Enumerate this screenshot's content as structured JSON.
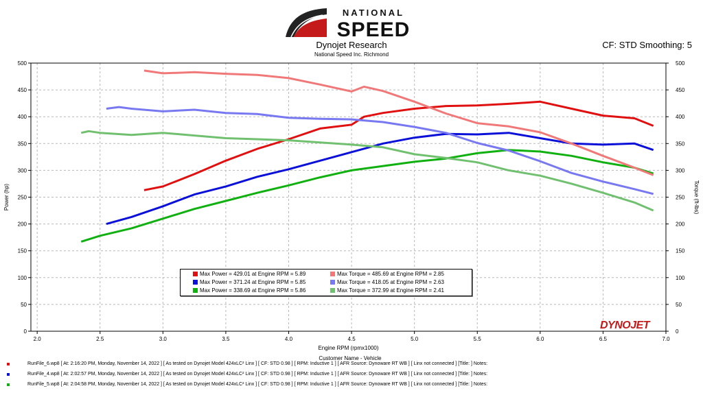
{
  "header": {
    "logo_line1": "NATIONAL",
    "logo_line2": "SPEED",
    "title": "Dynojet Research",
    "subtitle": "National Speed Inc. Richmond",
    "cf_info": "CF: STD Smoothing: 5"
  },
  "colors": {
    "red": "#e01010",
    "blue": "#0a10d8",
    "green": "#10b010",
    "light_red": "#f07878",
    "light_blue": "#7878f0",
    "light_green": "#70c070"
  },
  "chart_data": {
    "type": "line",
    "xlabel": "Engine RPM (rpmx1000)",
    "ylabel": "Power (hp)",
    "y2label": "Torque (ft-lbs)",
    "xlim": [
      1.95,
      7.0
    ],
    "ylim": [
      0,
      500
    ],
    "y2lim": [
      0,
      500
    ],
    "x_ticks": [
      "2.0",
      "2.5",
      "3.0",
      "3.5",
      "4.0",
      "4.5",
      "5.0",
      "5.5",
      "6.0",
      "6.5",
      "7.0"
    ],
    "y_ticks": [
      "0",
      "50",
      "100",
      "150",
      "200",
      "250",
      "300",
      "350",
      "400",
      "450",
      "500"
    ],
    "grid": true,
    "series": [
      {
        "name": "Max Power",
        "color": "#e01010",
        "x": [
          2.85,
          3.0,
          3.25,
          3.5,
          3.75,
          4.0,
          4.25,
          4.5,
          4.6,
          4.75,
          5.0,
          5.25,
          5.5,
          5.75,
          6.0,
          6.25,
          6.5,
          6.75,
          6.9
        ],
        "y": [
          263,
          270,
          293,
          318,
          340,
          358,
          378,
          385,
          400,
          407,
          415,
          420,
          421,
          424,
          428,
          415,
          402,
          397,
          383
        ]
      },
      {
        "name": "Max Power",
        "color": "#0a10d8",
        "x": [
          2.55,
          2.75,
          3.0,
          3.25,
          3.5,
          3.75,
          4.0,
          4.25,
          4.5,
          4.75,
          5.0,
          5.25,
          5.5,
          5.75,
          6.0,
          6.25,
          6.5,
          6.75,
          6.9
        ],
        "y": [
          200,
          213,
          233,
          255,
          270,
          288,
          302,
          318,
          334,
          350,
          361,
          368,
          367,
          370,
          360,
          350,
          348,
          350,
          338
        ]
      },
      {
        "name": "Max Power",
        "color": "#10b010",
        "x": [
          2.35,
          2.5,
          2.75,
          3.0,
          3.25,
          3.5,
          3.75,
          4.0,
          4.25,
          4.5,
          4.75,
          5.0,
          5.25,
          5.5,
          5.75,
          6.0,
          6.25,
          6.5,
          6.75,
          6.9
        ],
        "y": [
          167,
          178,
          192,
          210,
          228,
          243,
          258,
          272,
          287,
          300,
          308,
          316,
          322,
          332,
          338,
          335,
          327,
          315,
          305,
          294
        ]
      },
      {
        "name": "Max Torque",
        "color": "#f07878",
        "x": [
          2.85,
          3.0,
          3.25,
          3.5,
          3.75,
          4.0,
          4.25,
          4.5,
          4.6,
          4.75,
          5.0,
          5.25,
          5.5,
          5.75,
          6.0,
          6.25,
          6.5,
          6.75,
          6.9
        ],
        "y": [
          486,
          481,
          483,
          480,
          478,
          472,
          460,
          447,
          456,
          448,
          428,
          406,
          388,
          382,
          371,
          350,
          327,
          305,
          291
        ]
      },
      {
        "name": "Max Torque",
        "color": "#7878f0",
        "x": [
          2.55,
          2.65,
          2.75,
          3.0,
          3.25,
          3.5,
          3.75,
          4.0,
          4.25,
          4.5,
          4.75,
          5.0,
          5.25,
          5.5,
          5.75,
          6.0,
          6.25,
          6.5,
          6.75,
          6.9
        ],
        "y": [
          415,
          418,
          415,
          410,
          413,
          407,
          405,
          398,
          396,
          395,
          390,
          381,
          370,
          351,
          337,
          317,
          295,
          279,
          265,
          256
        ]
      },
      {
        "name": "Max Torque",
        "color": "#70c070",
        "x": [
          2.35,
          2.41,
          2.5,
          2.75,
          3.0,
          3.25,
          3.5,
          3.75,
          4.0,
          4.25,
          4.5,
          4.75,
          5.0,
          5.25,
          5.5,
          5.75,
          6.0,
          6.25,
          6.5,
          6.75,
          6.9
        ],
        "y": [
          370,
          373,
          370,
          366,
          370,
          365,
          360,
          358,
          356,
          352,
          348,
          343,
          330,
          323,
          315,
          300,
          290,
          275,
          258,
          240,
          225
        ]
      }
    ]
  },
  "legend": [
    {
      "text": "Max Power = 429.01 at Engine RPM = 5.89",
      "color": "#e01010"
    },
    {
      "text": "Max Torque = 485.69 at Engine RPM = 2.85",
      "color": "#f07878"
    },
    {
      "text": "Max Power = 371.24 at Engine RPM = 5.85",
      "color": "#0a10d8"
    },
    {
      "text": "Max Torque = 418.05 at Engine RPM = 2.63",
      "color": "#7878f0"
    },
    {
      "text": "Max Power = 338.69 at Engine RPM = 5.86",
      "color": "#10b010"
    },
    {
      "text": "Max Torque = 372.99 at Engine RPM = 2.41",
      "color": "#70c070"
    }
  ],
  "customer_label": "Customer Name - Vehicle",
  "brand_mark": "DYNOJET",
  "runs": [
    {
      "color": "#e01010",
      "text": "RunFile_6.wp8 [ At: 2:16:20 PM, Monday, November 14, 2022 ] [ As tested on Dynojet Model 424xLC² Linx ] [ CF: STD 0.98 ] [ RPM: Inductive 1 ] [ AFR Source: Dynoware RT WB ] [ Linx not connected ] [Title: ] Notes:"
    },
    {
      "color": "#0a10d8",
      "text": "RunFile_4.wp8 [ At: 2:02:57 PM, Monday, November 14, 2022 ] [ As tested on Dynojet Model 424xLC² Linx ] [ CF: STD 0.98 ] [ RPM: Inductive 1 ] [ AFR Source: Dynoware RT WB ] [ Linx not connected ] [Title: ] Notes:"
    },
    {
      "color": "#10b010",
      "text": "RunFile_5.wp8 [ At: 2:04:58 PM, Monday, November 14, 2022 ] [ As tested on Dynojet Model 424xLC² Linx ] [ CF: STD 0.98 ] [ RPM: Inductive 1 ] [ AFR Source: Dynoware RT WB ] [ Linx not connected ] [Title: ] Notes:"
    }
  ]
}
